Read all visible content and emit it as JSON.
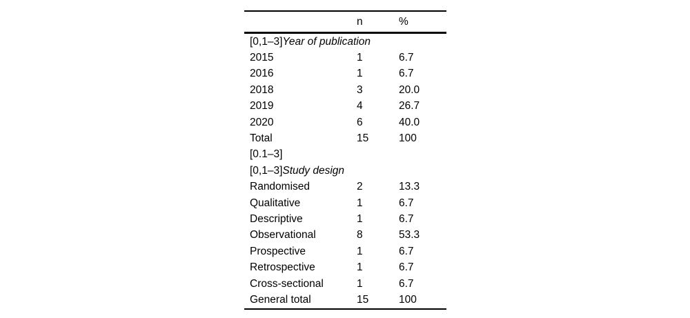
{
  "table": {
    "header": [
      "",
      "n",
      "%"
    ],
    "rows": [
      {
        "prefix": "[0,1–3]",
        "label": "Year of publication",
        "italic": true,
        "n": "",
        "pct": ""
      },
      {
        "prefix": "",
        "label": "2015",
        "italic": false,
        "n": "1",
        "pct": "6.7"
      },
      {
        "prefix": "",
        "label": "2016",
        "italic": false,
        "n": "1",
        "pct": "6.7"
      },
      {
        "prefix": "",
        "label": "2018",
        "italic": false,
        "n": "3",
        "pct": "20.0"
      },
      {
        "prefix": "",
        "label": "2019",
        "italic": false,
        "n": "4",
        "pct": "26.7"
      },
      {
        "prefix": "",
        "label": "2020",
        "italic": false,
        "n": "6",
        "pct": "40.0"
      },
      {
        "prefix": "",
        "label": "Total",
        "italic": false,
        "n": "15",
        "pct": "100"
      },
      {
        "prefix": "[0.1–3]",
        "label": "",
        "italic": false,
        "n": "",
        "pct": ""
      },
      {
        "prefix": "[0,1–3]",
        "label": "Study design",
        "italic": true,
        "n": "",
        "pct": ""
      },
      {
        "prefix": "",
        "label": "Randomised",
        "italic": false,
        "n": "2",
        "pct": "13.3"
      },
      {
        "prefix": "",
        "label": "Qualitative",
        "italic": false,
        "n": "1",
        "pct": "6.7"
      },
      {
        "prefix": "",
        "label": "Descriptive",
        "italic": false,
        "n": "1",
        "pct": "6.7"
      },
      {
        "prefix": "",
        "label": "Observational",
        "italic": false,
        "n": "8",
        "pct": "53.3"
      },
      {
        "prefix": "",
        "label": "Prospective",
        "italic": false,
        "n": "1",
        "pct": "6.7"
      },
      {
        "prefix": "",
        "label": "Retrospective",
        "italic": false,
        "n": "1",
        "pct": "6.7"
      },
      {
        "prefix": "",
        "label": "Cross-sectional",
        "italic": false,
        "n": "1",
        "pct": "6.7"
      },
      {
        "prefix": "",
        "label": "General total",
        "italic": false,
        "n": "15",
        "pct": "100"
      }
    ]
  },
  "colors": {
    "background": "#ffffff",
    "text": "#000000",
    "rule": "#000000"
  }
}
